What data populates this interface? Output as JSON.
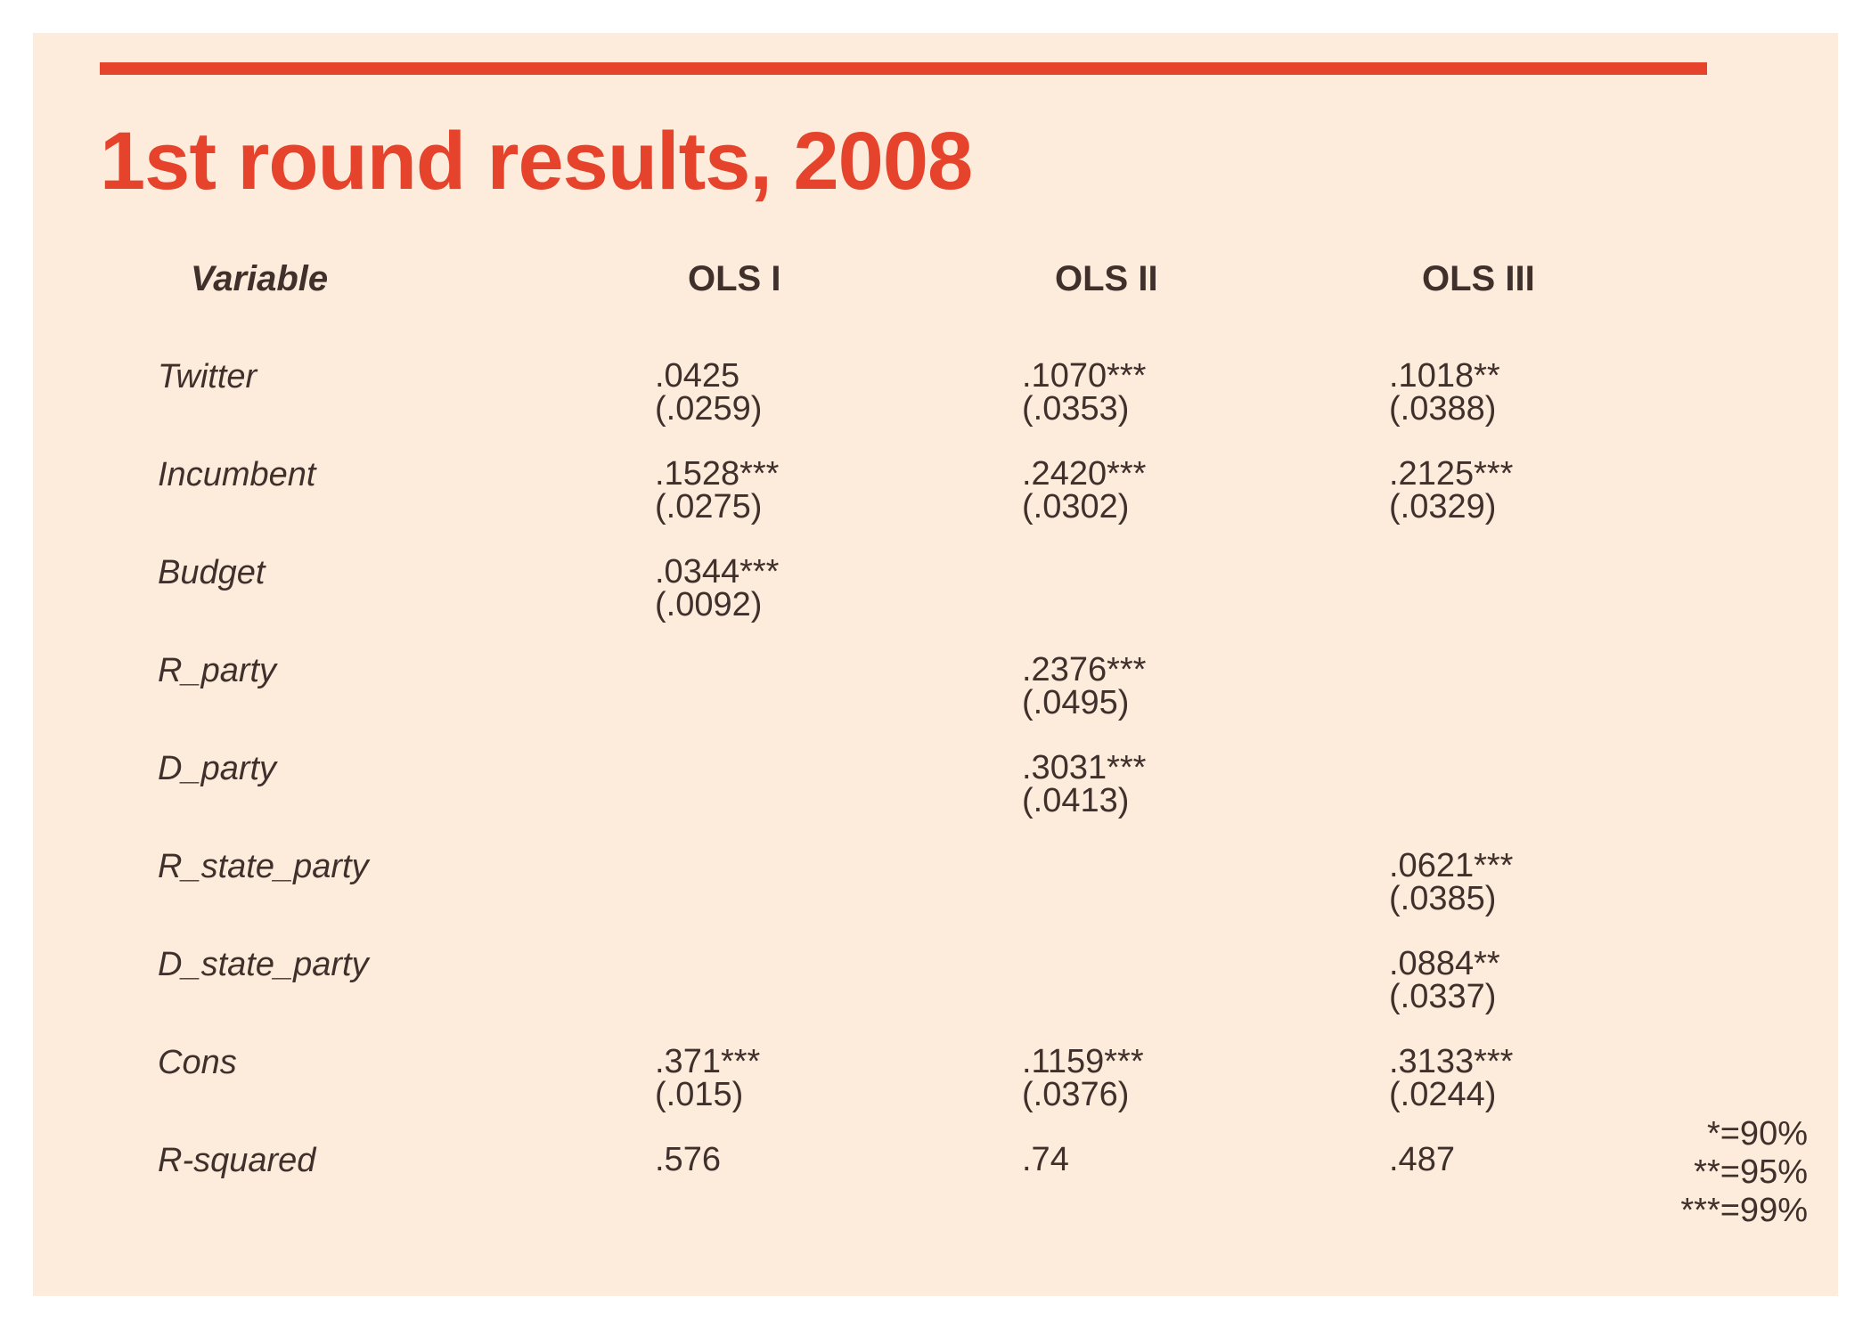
{
  "title": "1st round results, 2008",
  "colors": {
    "accent": "#e5432c",
    "panel": "#fdebdb",
    "text": "#3f302c"
  },
  "table": {
    "headers": [
      "Variable",
      "OLS I",
      "OLS II",
      "OLS III"
    ],
    "rows": [
      {
        "label": "Twitter",
        "cells": [
          [
            ".0425",
            "(.0259)"
          ],
          [
            ".1070***",
            "(.0353)"
          ],
          [
            ".1018**",
            "(.0388)"
          ]
        ]
      },
      {
        "label": "Incumbent",
        "cells": [
          [
            ".1528***",
            "(.0275)"
          ],
          [
            ".2420***",
            "(.0302)"
          ],
          [
            ".2125***",
            "(.0329)"
          ]
        ]
      },
      {
        "label": "Budget",
        "cells": [
          [
            ".0344***",
            "(.0092)"
          ],
          [
            "",
            ""
          ],
          [
            "",
            ""
          ]
        ]
      },
      {
        "label": "R_party",
        "cells": [
          [
            "",
            ""
          ],
          [
            ".2376***",
            "(.0495)"
          ],
          [
            "",
            ""
          ]
        ]
      },
      {
        "label": "D_party",
        "cells": [
          [
            "",
            ""
          ],
          [
            ".3031***",
            "(.0413)"
          ],
          [
            "",
            ""
          ]
        ]
      },
      {
        "label": "R_state_party",
        "cells": [
          [
            "",
            ""
          ],
          [
            "",
            ""
          ],
          [
            ".0621***",
            "(.0385)"
          ]
        ]
      },
      {
        "label": "D_state_party",
        "cells": [
          [
            "",
            ""
          ],
          [
            "",
            ""
          ],
          [
            ".0884**",
            "(.0337)"
          ]
        ]
      },
      {
        "label": "Cons",
        "cells": [
          [
            ".371***",
            "(.015)"
          ],
          [
            ".1159***",
            "(.0376)"
          ],
          [
            ".3133***",
            "(.0244)"
          ]
        ]
      },
      {
        "label": "R-squared",
        "cells": [
          [
            ".576",
            ""
          ],
          [
            ".74",
            ""
          ],
          [
            ".487",
            ""
          ]
        ]
      }
    ]
  },
  "legend": [
    "*=90%",
    "**=95%",
    "***=99%"
  ]
}
